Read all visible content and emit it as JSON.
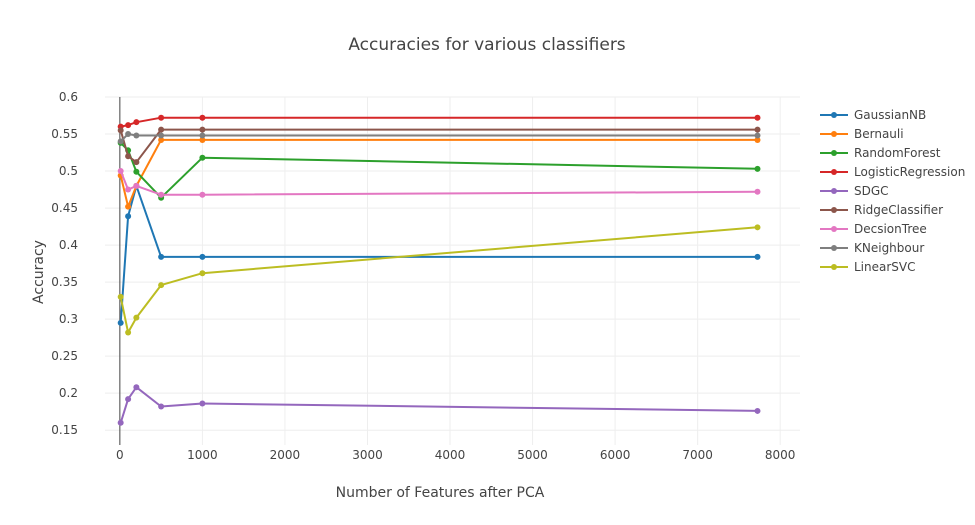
{
  "chart_data": {
    "type": "line",
    "title": "Accuracies for various classifiers",
    "xlabel": "Number of Features after PCA",
    "ylabel": "Accuracy",
    "xlim": [
      -180,
      8240
    ],
    "ylim": [
      0.13,
      0.6
    ],
    "xticks": [
      0,
      1000,
      2000,
      3000,
      4000,
      5000,
      6000,
      7000,
      8000
    ],
    "xtick_labels": [
      "0",
      "1000",
      "2000",
      "3000",
      "4000",
      "5000",
      "6000",
      "7000",
      "8000"
    ],
    "yticks": [
      0.15,
      0.2,
      0.25,
      0.3,
      0.35,
      0.4,
      0.45,
      0.5,
      0.55,
      0.6
    ],
    "ytick_labels": [
      "0.15",
      "0.2",
      "0.25",
      "0.3",
      "0.35",
      "0.4",
      "0.45",
      "0.5",
      "0.55",
      "0.6"
    ],
    "grid": true,
    "legend_position": "right",
    "x": [
      10,
      100,
      200,
      500,
      1000,
      7725
    ],
    "series": [
      {
        "name": "GaussianNB",
        "color": "#1f77b4",
        "values": [
          0.295,
          0.439,
          0.48,
          0.384,
          0.384,
          0.384
        ]
      },
      {
        "name": "Bernauli",
        "color": "#ff7f0e",
        "values": [
          0.494,
          0.452,
          0.48,
          0.542,
          0.542,
          0.542
        ]
      },
      {
        "name": "RandomForest",
        "color": "#2ca02c",
        "values": [
          0.538,
          0.528,
          0.499,
          0.464,
          0.518,
          0.503
        ]
      },
      {
        "name": "LogisticRegression",
        "color": "#d62728",
        "values": [
          0.56,
          0.562,
          0.566,
          0.572,
          0.572,
          0.572
        ]
      },
      {
        "name": "SDGC",
        "color": "#9467bd",
        "values": [
          0.16,
          0.192,
          0.208,
          0.182,
          0.186,
          0.176
        ]
      },
      {
        "name": "RidgeClassifier",
        "color": "#8c564b",
        "values": [
          0.555,
          0.52,
          0.512,
          0.556,
          0.556,
          0.556
        ]
      },
      {
        "name": "DecsionTree",
        "color": "#e377c2",
        "values": [
          0.5,
          0.475,
          0.48,
          0.468,
          0.468,
          0.472
        ]
      },
      {
        "name": "KNeighbour",
        "color": "#7f7f7f",
        "values": [
          0.54,
          0.55,
          0.548,
          0.548,
          0.548,
          0.548
        ]
      },
      {
        "name": "LinearSVC",
        "color": "#bcbd22",
        "values": [
          0.33,
          0.282,
          0.302,
          0.346,
          0.362,
          0.424
        ]
      }
    ]
  }
}
